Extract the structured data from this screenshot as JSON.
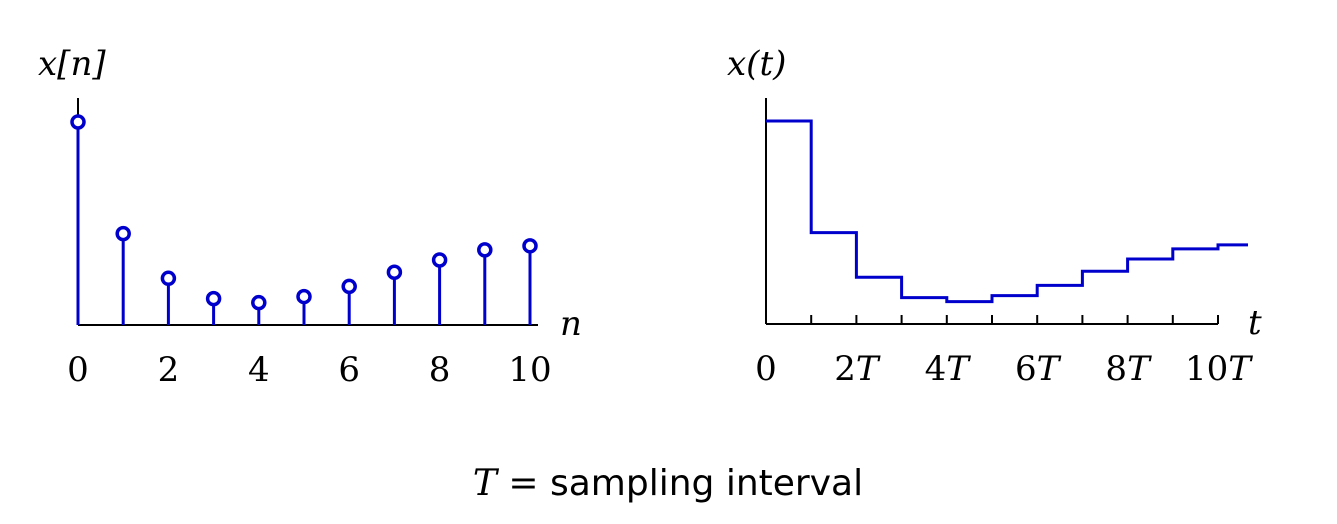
{
  "charts": [
    {
      "type": "stem",
      "ylabel": "x[n]",
      "xlabel": "n",
      "x": [
        0,
        1,
        2,
        3,
        4,
        5,
        6,
        7,
        8,
        9,
        10
      ],
      "values": [
        1.0,
        0.45,
        0.23,
        0.13,
        0.11,
        0.14,
        0.19,
        0.26,
        0.32,
        0.37,
        0.39
      ],
      "xticks": [
        0,
        2,
        4,
        6,
        8,
        10
      ],
      "xtick_labels": [
        "0",
        "2",
        "4",
        "6",
        "8",
        "10"
      ],
      "ylim": [
        0,
        1.1
      ],
      "color": "#0000cc"
    },
    {
      "type": "step",
      "ylabel": "x(t)",
      "xlabel": "t",
      "x_label_suffix": "T",
      "x": [
        0,
        1,
        2,
        3,
        4,
        5,
        6,
        7,
        8,
        9,
        10
      ],
      "values": [
        1.0,
        0.45,
        0.23,
        0.13,
        0.11,
        0.14,
        0.19,
        0.26,
        0.32,
        0.37,
        0.39
      ],
      "xticks": [
        0,
        2,
        4,
        6,
        8,
        10
      ],
      "xtick_labels": [
        "0",
        "2",
        "4",
        "6",
        "8",
        "10"
      ],
      "ylim": [
        0,
        1.1
      ],
      "color": "#0000cc"
    }
  ],
  "caption": {
    "variable": "T",
    "equals": " = ",
    "text": "sampling interval"
  }
}
